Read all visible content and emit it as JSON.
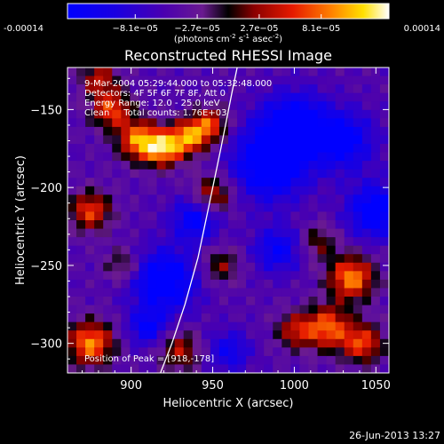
{
  "chart_data": {
    "type": "heatmap",
    "title": "Reconstructed RHESSI Image",
    "xlabel": "Heliocentric X (arcsec)",
    "ylabel": "Heliocentric Y (arcsec)",
    "xlim": [
      861,
      1058
    ],
    "ylim": [
      -319,
      -123
    ],
    "xticks": [
      900,
      950,
      1000,
      1050
    ],
    "yticks": [
      -150,
      -200,
      -250,
      -300
    ],
    "colorbar": {
      "min": -0.00014,
      "max": 0.00014,
      "tick_values": [
        -0.00014,
        -8.1e-05,
        -2.7e-05,
        2.7e-05,
        8.1e-05,
        0.00014
      ],
      "tick_labels": [
        "-0.00014",
        "−8.1e−05",
        "−2.7e−05",
        "2.7e−05",
        "8.1e−05",
        "0.00014"
      ],
      "unit_base": "(photons cm",
      "unit_exp1": "-2",
      "unit_mid": " s",
      "unit_exp2": "-1",
      "unit_tail": " asec",
      "unit_exp3": "-2",
      "unit_close": ")"
    },
    "annotations": [
      "9-Mar-2004 05:29:44.000 to 05:32:48.000",
      "Detectors: 4F 5F 6F 7F 8F, Att 0",
      "Energy Range: 12.0 - 25.0 keV",
      "Clean     Total counts: 1.76E+03",
      "Position of Peak = [918,-178]"
    ],
    "peak": {
      "x": 918,
      "y": -178
    },
    "limb_curve": {
      "x": [
        918,
        925,
        933,
        941,
        948,
        955,
        962,
        965
      ],
      "y": [
        -319,
        -300,
        -275,
        -245,
        -210,
        -175,
        -138,
        -123
      ]
    },
    "blobs": [
      {
        "x": 905,
        "y": -170,
        "amp": 1.0,
        "s": 9
      },
      {
        "x": 920,
        "y": -175,
        "amp": 1.0,
        "s": 8
      },
      {
        "x": 935,
        "y": -168,
        "amp": 0.9,
        "s": 8
      },
      {
        "x": 888,
        "y": -150,
        "amp": 0.8,
        "s": 9
      },
      {
        "x": 948,
        "y": -160,
        "amp": 0.8,
        "s": 8
      },
      {
        "x": 950,
        "y": -205,
        "amp": 0.7,
        "s": 9
      },
      {
        "x": 875,
        "y": -215,
        "amp": 0.8,
        "s": 9
      },
      {
        "x": 875,
        "y": -300,
        "amp": 1.0,
        "s": 10
      },
      {
        "x": 1035,
        "y": -258,
        "amp": 1.0,
        "s": 10
      },
      {
        "x": 1020,
        "y": -290,
        "amp": 0.9,
        "s": 10
      },
      {
        "x": 1042,
        "y": -300,
        "amp": 0.8,
        "s": 9
      },
      {
        "x": 1000,
        "y": -292,
        "amp": 0.6,
        "s": 8
      },
      {
        "x": 930,
        "y": -305,
        "amp": 0.6,
        "s": 9
      },
      {
        "x": 955,
        "y": -250,
        "amp": 0.5,
        "s": 8
      },
      {
        "x": 1015,
        "y": -235,
        "amp": 0.45,
        "s": 8
      },
      {
        "x": 895,
        "y": -250,
        "amp": 0.45,
        "s": 8
      },
      {
        "x": 880,
        "y": -130,
        "amp": 0.6,
        "s": 8
      },
      {
        "x": 985,
        "y": -185,
        "amp": -0.9,
        "s": 16
      },
      {
        "x": 1000,
        "y": -160,
        "amp": -0.85,
        "s": 14
      },
      {
        "x": 1030,
        "y": -170,
        "amp": -0.7,
        "s": 13
      },
      {
        "x": 920,
        "y": -260,
        "amp": -0.85,
        "s": 14
      },
      {
        "x": 940,
        "y": -220,
        "amp": -0.7,
        "s": 10
      },
      {
        "x": 1050,
        "y": -215,
        "amp": -0.8,
        "s": 12
      },
      {
        "x": 990,
        "y": -240,
        "amp": -0.6,
        "s": 10
      },
      {
        "x": 960,
        "y": -305,
        "amp": -0.5,
        "s": 9
      },
      {
        "x": 910,
        "y": -290,
        "amp": -0.6,
        "s": 8
      }
    ]
  },
  "footer": {
    "date": "26-Jun-2013 13:27"
  }
}
